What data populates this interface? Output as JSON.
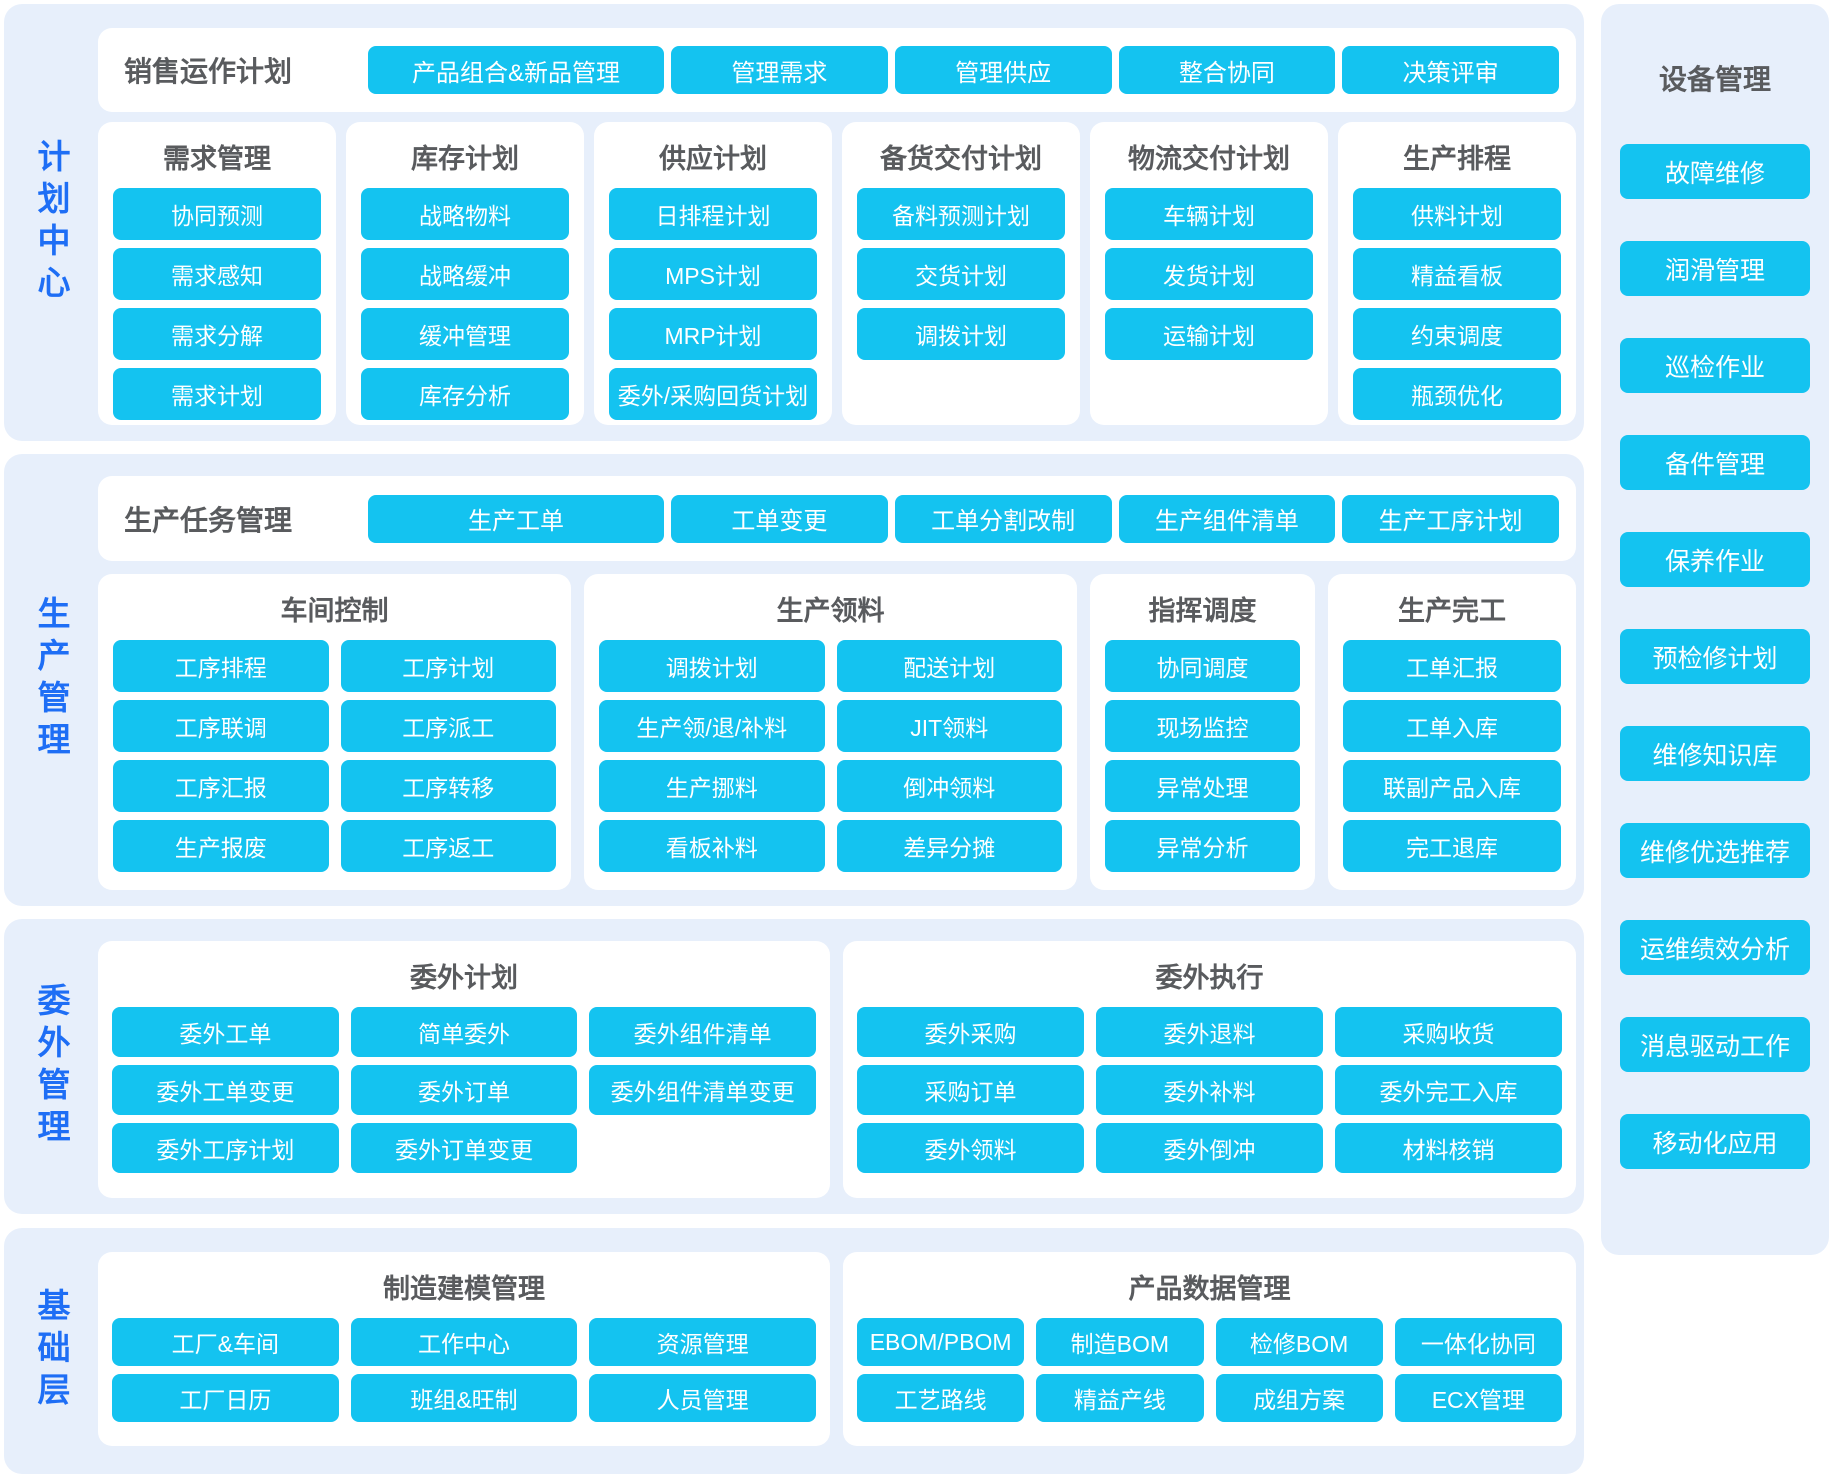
{
  "colors": {
    "accent": "#14c3f0",
    "band_bg": "#e7effb",
    "panel_bg": "#ffffff",
    "title_text": "#595b5e",
    "band_label": "#1e6ef5",
    "button_text": "#ffffff"
  },
  "bands": [
    {
      "label": "计划中心",
      "top_row": {
        "title": "销售运作计划",
        "buttons": [
          "产品组合&新品管理",
          "管理需求",
          "管理供应",
          "整合协同",
          "决策评审"
        ]
      },
      "columns": [
        {
          "title": "需求管理",
          "items": [
            "协同预测",
            "需求感知",
            "需求分解",
            "需求计划"
          ]
        },
        {
          "title": "库存计划",
          "items": [
            "战略物料",
            "战略缓冲",
            "缓冲管理",
            "库存分析"
          ]
        },
        {
          "title": "供应计划",
          "items": [
            "日排程计划",
            "MPS计划",
            "MRP计划",
            "委外/采购回货计划"
          ]
        },
        {
          "title": "备货交付计划",
          "items": [
            "备料预测计划",
            "交货计划",
            "调拨计划"
          ]
        },
        {
          "title": "物流交付计划",
          "items": [
            "车辆计划",
            "发货计划",
            "运输计划"
          ]
        },
        {
          "title": "生产排程",
          "items": [
            "供料计划",
            "精益看板",
            "约束调度",
            "瓶颈优化"
          ]
        }
      ]
    },
    {
      "label": "生产管理",
      "top_row": {
        "title": "生产任务管理",
        "buttons": [
          "生产工单",
          "工单变更",
          "工单分割改制",
          "生产组件清单",
          "生产工序计划"
        ]
      },
      "panels": [
        {
          "title": "车间控制",
          "items": [
            "工序排程",
            "工序计划",
            "工序联调",
            "工序派工",
            "工序汇报",
            "工序转移",
            "生产报废",
            "工序返工"
          ]
        },
        {
          "title": "生产领料",
          "items": [
            "调拨计划",
            "配送计划",
            "生产领/退/补料",
            "JIT领料",
            "生产挪料",
            "倒冲领料",
            "看板补料",
            "差异分摊"
          ]
        },
        {
          "title": "指挥调度",
          "items": [
            "协同调度",
            "现场监控",
            "异常处理",
            "异常分析"
          ]
        },
        {
          "title": "生产完工",
          "items": [
            "工单汇报",
            "工单入库",
            "联副产品入库",
            "完工退库"
          ]
        }
      ]
    },
    {
      "label": "委外管理",
      "panels": [
        {
          "title": "委外计划",
          "items": [
            "委外工单",
            "简单委外",
            "委外组件清单",
            "委外工单变更",
            "委外订单",
            "委外组件清单变更",
            "委外工序计划",
            "委外订单变更"
          ]
        },
        {
          "title": "委外执行",
          "items": [
            "委外采购",
            "委外退料",
            "采购收货",
            "采购订单",
            "委外补料",
            "委外完工入库",
            "委外领料",
            "委外倒冲",
            "材料核销"
          ]
        }
      ]
    },
    {
      "label": "基础层",
      "panels": [
        {
          "title": "制造建模管理",
          "items": [
            "工厂&车间",
            "工作中心",
            "资源管理",
            "工厂日历",
            "班组&旺制",
            "人员管理"
          ]
        },
        {
          "title": "产品数据管理",
          "items": [
            "EBOM/PBOM",
            "制造BOM",
            "检修BOM",
            "一体化协同",
            "工艺路线",
            "精益产线",
            "成组方案",
            "ECX管理"
          ]
        }
      ]
    }
  ],
  "sidebar": {
    "title": "设备管理",
    "items": [
      "故障维修",
      "润滑管理",
      "巡检作业",
      "备件管理",
      "保养作业",
      "预检修计划",
      "维修知识库",
      "维修优选推荐",
      "运维绩效分析",
      "消息驱动工作",
      "移动化应用"
    ]
  }
}
